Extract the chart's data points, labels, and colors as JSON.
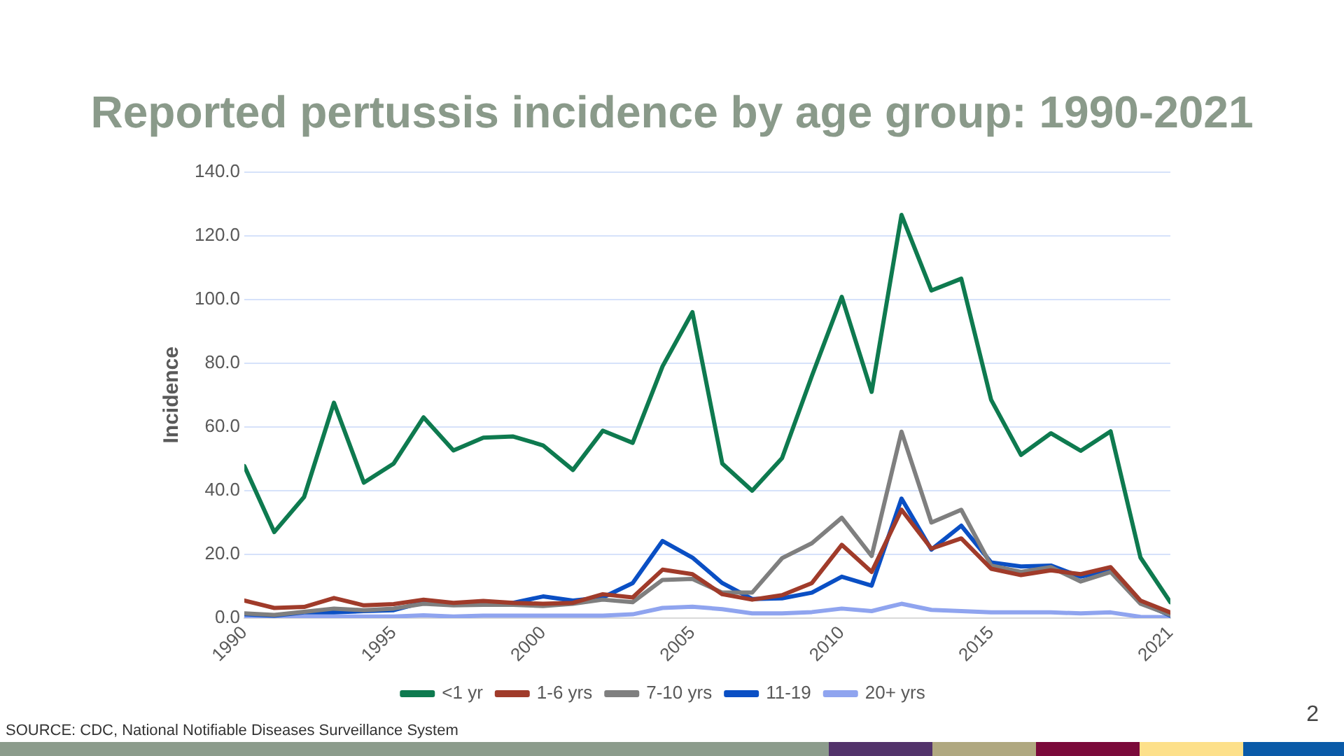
{
  "chart_data": {
    "type": "line",
    "title": "Reported pertussis incidence by age group: 1990-2021",
    "ylabel": "Incidence",
    "x": [
      1990,
      1991,
      1992,
      1993,
      1994,
      1995,
      1996,
      1997,
      1998,
      1999,
      2000,
      2001,
      2002,
      2003,
      2004,
      2005,
      2006,
      2007,
      2008,
      2009,
      2010,
      2011,
      2012,
      2013,
      2014,
      2015,
      2016,
      2017,
      2018,
      2019,
      2020,
      2021
    ],
    "xlim": [
      1990,
      2021
    ],
    "xticks": [
      1990,
      1995,
      2000,
      2005,
      2010,
      2015,
      2021
    ],
    "ylim": [
      0,
      140
    ],
    "yticks": [
      {
        "value": 0,
        "label": "0.0"
      },
      {
        "value": 20,
        "label": "20.0"
      },
      {
        "value": 40,
        "label": "40.0"
      },
      {
        "value": 60,
        "label": "60.0"
      },
      {
        "value": 80,
        "label": "80.0"
      },
      {
        "value": 100,
        "label": "100.0"
      },
      {
        "value": 120,
        "label": "120.0"
      },
      {
        "value": 140,
        "label": "140.0"
      }
    ],
    "grid": "y",
    "legend": "bottom",
    "marker": "none",
    "line_style": "solid",
    "series": [
      {
        "name": "<1 yr",
        "color": "#0e7a4f",
        "values": [
          47.7,
          27,
          38,
          67.6,
          42.5,
          48.5,
          63,
          52.6,
          56.6,
          57,
          54.2,
          46.5,
          58.8,
          55,
          79,
          96,
          48.5,
          40,
          50.2,
          76,
          100.8,
          71,
          126.5,
          102.8,
          106.5,
          68.5,
          51.2,
          58,
          52.5,
          58.6,
          19,
          5
        ]
      },
      {
        "name": "1-6 yrs",
        "color": "#a03b2a",
        "values": [
          5.5,
          3.2,
          3.5,
          6.3,
          4,
          4.4,
          5.8,
          4.8,
          5.4,
          4.8,
          4.5,
          4.8,
          7.5,
          6.5,
          15.2,
          13.8,
          7.5,
          5.8,
          7.2,
          11,
          23,
          14.5,
          34,
          21.8,
          25,
          15.5,
          13.5,
          15,
          13.8,
          16,
          5.5,
          1.8
        ]
      },
      {
        "name": "7-10 yrs",
        "color": "#7f7f7f",
        "values": [
          1.5,
          1,
          2,
          3,
          2.5,
          3,
          4.5,
          4,
          4.2,
          4.2,
          3.8,
          4.5,
          5.8,
          5,
          12,
          12.3,
          8,
          8,
          18.8,
          23.5,
          31.5,
          19.5,
          58.5,
          30,
          34,
          16.5,
          14.5,
          16,
          11.5,
          14.5,
          4.5,
          1
        ]
      },
      {
        "name": "11-19",
        "color": "#0a4fc4",
        "values": [
          1.2,
          0.8,
          1.8,
          1.8,
          2.2,
          2.5,
          5,
          4.2,
          4.8,
          4.8,
          6.8,
          5.5,
          6.5,
          11,
          24.2,
          19,
          11,
          6,
          6.2,
          8,
          13,
          10.2,
          37.5,
          21.5,
          29,
          17.5,
          16.2,
          16.5,
          13,
          15,
          5,
          0.8
        ]
      },
      {
        "name": "20+ yrs",
        "color": "#8fa4ef",
        "values": [
          0.3,
          0.3,
          0.5,
          0.5,
          0.5,
          0.5,
          0.9,
          0.5,
          0.8,
          0.8,
          0.8,
          0.8,
          0.8,
          1.2,
          3.2,
          3.6,
          2.8,
          1.5,
          1.5,
          1.9,
          3,
          2.2,
          4.5,
          2.6,
          2.2,
          1.8,
          1.8,
          1.8,
          1.5,
          1.8,
          0.4,
          0.3
        ]
      }
    ],
    "annotations": [
      "SOURCE:  CDC, National Notifiable Diseases Surveillance System",
      "2"
    ]
  }
}
